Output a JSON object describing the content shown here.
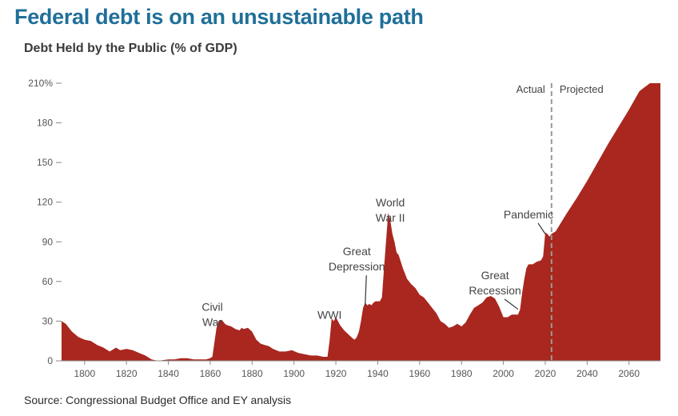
{
  "header": {
    "title": "Federal debt is on an unsustainable path",
    "subtitle": "Debt Held by the Public (% of GDP)",
    "source": "Source: Congressional Budget Office and EY analysis"
  },
  "colors": {
    "area": "#a9271f",
    "title": "#1f6f99",
    "axis": "#888888",
    "divider": "#9a9a9a"
  },
  "chart_data": {
    "type": "area",
    "title": "Federal debt is on an unsustainable path",
    "subtitle": "Debt Held by the Public (% of GDP)",
    "xlabel": "",
    "ylabel": "",
    "xlim": [
      1789,
      2075
    ],
    "ylim": [
      0,
      210
    ],
    "x_ticks": [
      1800,
      1820,
      1840,
      1860,
      1880,
      1900,
      1920,
      1940,
      1960,
      1980,
      2000,
      2020,
      2040,
      2060
    ],
    "x_tick_labels": [
      "1800",
      "1820",
      "1840",
      "1860",
      "1880",
      "1900",
      "1920",
      "1940",
      "1960",
      "1980",
      "2000",
      "2020",
      "2040",
      "2060"
    ],
    "y_ticks": [
      0,
      30,
      60,
      90,
      120,
      150,
      180,
      210
    ],
    "y_tick_labels": [
      "0",
      "30",
      "60",
      "90",
      "120",
      "150",
      "180",
      "210%"
    ],
    "grid": false,
    "legend": "none",
    "divider": {
      "x": 2023,
      "left_label": "Actual",
      "right_label": "Projected"
    },
    "annotations": [
      {
        "lines": [
          "Civil",
          "War"
        ],
        "x": 1861,
        "y": 45
      },
      {
        "lines": [
          "WWI"
        ],
        "x": 1917,
        "y": 39
      },
      {
        "lines": [
          "Great",
          "Depression"
        ],
        "x": 1930,
        "y": 87,
        "arrow_to": [
          1934,
          42
        ]
      },
      {
        "lines": [
          "World",
          "War II"
        ],
        "x": 1946,
        "y": 124
      },
      {
        "lines": [
          "Great",
          "Recession"
        ],
        "x": 1996,
        "y": 69,
        "arrow_to": [
          2007,
          39
        ]
      },
      {
        "lines": [
          "Pandemic"
        ],
        "x": 2012,
        "y": 115,
        "arrow_to": [
          2020,
          96
        ]
      }
    ],
    "series": [
      {
        "name": "",
        "x": [
          1789,
          1791,
          1794,
          1797,
          1800,
          1803,
          1806,
          1809,
          1812,
          1815,
          1817,
          1820,
          1823,
          1826,
          1829,
          1832,
          1835,
          1840,
          1843,
          1846,
          1849,
          1852,
          1855,
          1858,
          1860,
          1861,
          1862,
          1863,
          1864,
          1865,
          1866,
          1867,
          1868,
          1870,
          1872,
          1874,
          1875,
          1876,
          1878,
          1880,
          1882,
          1884,
          1886,
          1888,
          1890,
          1893,
          1896,
          1899,
          1902,
          1905,
          1908,
          1911,
          1914,
          1916,
          1917,
          1918,
          1919,
          1920,
          1921,
          1922,
          1924,
          1926,
          1928,
          1929,
          1930,
          1931,
          1932,
          1933,
          1934,
          1935,
          1936,
          1937,
          1938,
          1939,
          1940,
          1941,
          1942,
          1943,
          1944,
          1945,
          1946,
          1947,
          1948,
          1949,
          1950,
          1952,
          1954,
          1956,
          1958,
          1960,
          1962,
          1964,
          1966,
          1968,
          1970,
          1972,
          1974,
          1976,
          1978,
          1980,
          1982,
          1984,
          1986,
          1988,
          1990,
          1992,
          1994,
          1996,
          1998,
          2000,
          2002,
          2004,
          2006,
          2007,
          2008,
          2009,
          2010,
          2011,
          2012,
          2014,
          2016,
          2018,
          2019,
          2020,
          2021,
          2022,
          2023,
          2025,
          2030,
          2035,
          2040,
          2045,
          2050,
          2055,
          2060,
          2065,
          2070,
          2075
        ],
        "values": [
          30,
          28,
          22,
          18,
          16,
          15,
          12,
          10,
          7,
          10,
          8,
          9,
          8,
          6,
          4,
          1,
          0,
          1,
          1,
          2,
          2,
          1,
          1,
          1,
          2,
          3,
          14,
          25,
          30,
          31,
          30,
          28,
          27,
          26,
          24,
          23,
          25,
          24,
          25,
          22,
          16,
          13,
          12,
          11,
          9,
          7,
          7,
          8,
          6,
          5,
          4,
          4,
          3,
          3,
          15,
          32,
          30,
          33,
          30,
          27,
          23,
          20,
          17,
          16,
          18,
          22,
          30,
          40,
          44,
          42,
          43,
          42,
          44,
          45,
          45,
          45,
          48,
          70,
          91,
          112,
          106,
          96,
          90,
          82,
          80,
          70,
          62,
          58,
          55,
          50,
          48,
          44,
          40,
          36,
          30,
          28,
          25,
          26,
          28,
          26,
          29,
          35,
          40,
          42,
          44,
          48,
          49,
          47,
          41,
          33,
          33,
          35,
          35,
          35,
          39,
          52,
          62,
          70,
          73,
          73,
          75,
          76,
          79,
          97,
          96,
          94,
          96,
          98,
          111,
          123,
          136,
          150,
          164,
          177,
          190,
          204,
          214,
          224
        ]
      }
    ]
  }
}
